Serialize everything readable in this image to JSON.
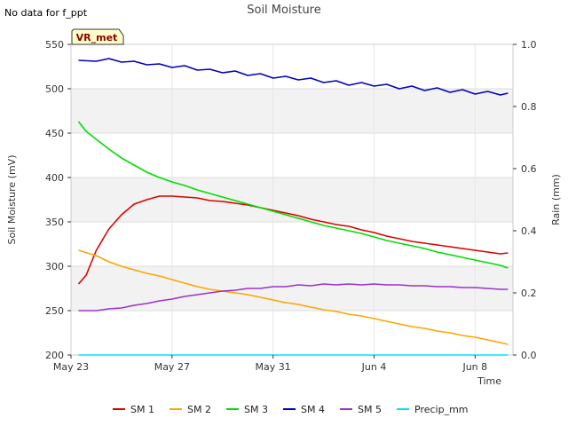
{
  "chart_data": {
    "type": "line",
    "title": "Soil Moisture",
    "note": "No data for f_ppt",
    "badge": "VR_met",
    "xlabel": "Time",
    "ylabel": "Soil Moisture (mV)",
    "y2label": "Rain (mm)",
    "xlim": [
      0,
      17.5
    ],
    "ylim": [
      200,
      550
    ],
    "y2lim": [
      0,
      1.0
    ],
    "x_ticks": [
      {
        "value": 0,
        "label": "May 23"
      },
      {
        "value": 4,
        "label": "May 27"
      },
      {
        "value": 8,
        "label": "May 31"
      },
      {
        "value": 12,
        "label": "Jun 4"
      },
      {
        "value": 16,
        "label": "Jun 8"
      }
    ],
    "y_ticks": [
      200,
      250,
      300,
      350,
      400,
      450,
      500,
      550
    ],
    "y2_ticks": [
      "0.0",
      "0.2",
      "0.4",
      "0.6",
      "0.8",
      "1.0"
    ],
    "y2_tick_values": [
      0,
      0.2,
      0.4,
      0.6,
      0.8,
      1.0
    ],
    "bands": [
      [
        250,
        300
      ],
      [
        350,
        400
      ],
      [
        450,
        500
      ]
    ],
    "series": [
      {
        "name": "SM 1",
        "color": "#dd0000",
        "axis": "left",
        "x": [
          0.3,
          0.6,
          1.0,
          1.5,
          2.0,
          2.5,
          3.0,
          3.5,
          4.0,
          4.5,
          5.0,
          5.5,
          6.0,
          6.5,
          7.0,
          7.5,
          8.0,
          8.5,
          9.0,
          9.5,
          10.0,
          10.5,
          11.0,
          11.5,
          12.0,
          12.5,
          13.0,
          13.5,
          14.0,
          14.5,
          15.0,
          15.5,
          16.0,
          16.5,
          17.0,
          17.3
        ],
        "values": [
          280,
          290,
          318,
          342,
          358,
          370,
          375,
          379,
          379,
          378,
          377,
          374,
          373,
          371,
          369,
          366,
          363,
          360,
          357,
          353,
          350,
          347,
          345,
          341,
          338,
          334,
          331,
          328,
          326,
          324,
          322,
          320,
          318,
          316,
          314,
          315
        ]
      },
      {
        "name": "SM 2",
        "color": "#ffa500",
        "axis": "left",
        "x": [
          0.3,
          1.0,
          1.5,
          2.0,
          2.5,
          3.0,
          3.5,
          4.0,
          4.5,
          5.0,
          5.5,
          6.0,
          6.5,
          7.0,
          7.5,
          8.0,
          8.5,
          9.0,
          9.5,
          10.0,
          10.5,
          11.0,
          11.5,
          12.0,
          12.5,
          13.0,
          13.5,
          14.0,
          14.5,
          15.0,
          15.5,
          16.0,
          16.5,
          17.0,
          17.3
        ],
        "values": [
          318,
          312,
          305,
          300,
          296,
          292,
          289,
          285,
          281,
          277,
          274,
          272,
          270,
          268,
          265,
          262,
          259,
          257,
          254,
          251,
          249,
          246,
          244,
          241,
          238,
          235,
          232,
          230,
          227,
          225,
          222,
          220,
          217,
          214,
          212
        ]
      },
      {
        "name": "SM 3",
        "color": "#00dd00",
        "axis": "left",
        "x": [
          0.3,
          0.6,
          1.0,
          1.5,
          2.0,
          2.5,
          3.0,
          3.5,
          4.0,
          4.5,
          5.0,
          5.5,
          6.0,
          6.5,
          7.0,
          7.5,
          8.0,
          8.5,
          9.0,
          9.5,
          10.0,
          10.5,
          11.0,
          11.5,
          12.0,
          12.5,
          13.0,
          13.5,
          14.0,
          14.5,
          15.0,
          15.5,
          16.0,
          16.5,
          17.0,
          17.3
        ],
        "values": [
          463,
          452,
          443,
          432,
          422,
          414,
          406,
          400,
          395,
          391,
          386,
          382,
          378,
          374,
          370,
          366,
          362,
          358,
          354,
          350,
          346,
          343,
          340,
          337,
          333,
          329,
          326,
          323,
          320,
          316,
          313,
          310,
          307,
          304,
          301,
          298
        ]
      },
      {
        "name": "SM 4",
        "color": "#0000bb",
        "axis": "left",
        "x": [
          0.3,
          1.0,
          1.5,
          2.0,
          2.5,
          3.0,
          3.5,
          4.0,
          4.5,
          5.0,
          5.5,
          6.0,
          6.5,
          7.0,
          7.5,
          8.0,
          8.5,
          9.0,
          9.5,
          10.0,
          10.5,
          11.0,
          11.5,
          12.0,
          12.5,
          13.0,
          13.5,
          14.0,
          14.5,
          15.0,
          15.5,
          16.0,
          16.5,
          17.0,
          17.3
        ],
        "values": [
          532,
          531,
          534,
          530,
          531,
          527,
          528,
          524,
          526,
          521,
          522,
          518,
          520,
          515,
          517,
          512,
          514,
          510,
          512,
          507,
          509,
          504,
          507,
          503,
          505,
          500,
          503,
          498,
          501,
          496,
          499,
          494,
          497,
          493,
          495
        ]
      },
      {
        "name": "SM 5",
        "color": "#9933cc",
        "axis": "left",
        "x": [
          0.3,
          1.0,
          1.5,
          2.0,
          2.5,
          3.0,
          3.5,
          4.0,
          4.5,
          5.0,
          5.5,
          6.0,
          6.5,
          7.0,
          7.5,
          8.0,
          8.5,
          9.0,
          9.5,
          10.0,
          10.5,
          11.0,
          11.5,
          12.0,
          12.5,
          13.0,
          13.5,
          14.0,
          14.5,
          15.0,
          15.5,
          16.0,
          16.5,
          17.0,
          17.3
        ],
        "values": [
          250,
          250,
          252,
          253,
          256,
          258,
          261,
          263,
          266,
          268,
          270,
          272,
          273,
          275,
          275,
          277,
          277,
          279,
          278,
          280,
          279,
          280,
          279,
          280,
          279,
          279,
          278,
          278,
          277,
          277,
          276,
          276,
          275,
          274,
          274
        ]
      },
      {
        "name": "Precip_mm",
        "color": "#00e5ee",
        "axis": "right",
        "x": [
          0.3,
          17.3
        ],
        "values": [
          0,
          0
        ]
      }
    ]
  }
}
